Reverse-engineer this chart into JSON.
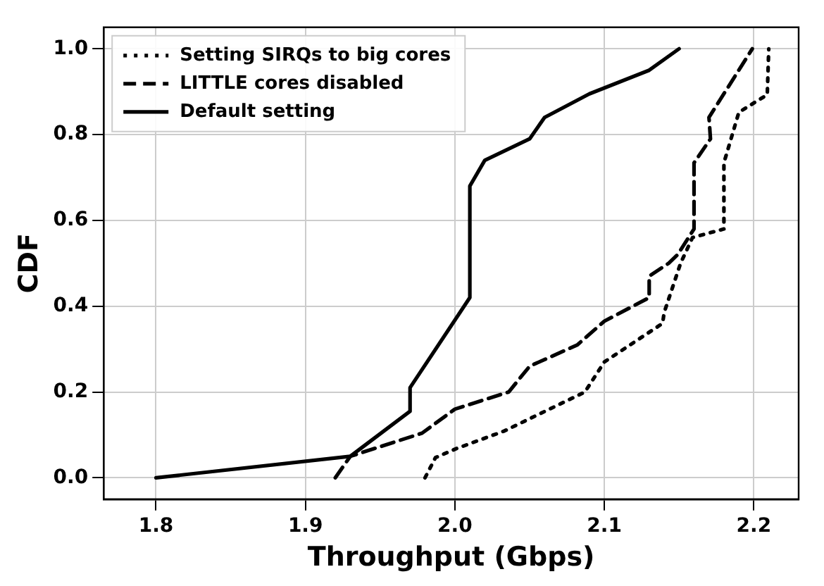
{
  "chart_data": {
    "type": "line",
    "xlabel": "Throughput (Gbps)",
    "ylabel": "CDF",
    "xlim": [
      1.765,
      2.23
    ],
    "ylim": [
      -0.05,
      1.05
    ],
    "xticks": [
      1.8,
      1.9,
      {
        "value": 2,
        "label": "2.0"
      },
      2.1,
      2.2
    ],
    "yticks": [
      {
        "value": 0,
        "label": "0.0"
      },
      0.2,
      0.4,
      0.6,
      0.8,
      {
        "value": 1,
        "label": "1.0"
      }
    ],
    "grid": true,
    "legend": "top left",
    "marker": "none",
    "series": [
      {
        "name": "Setting SIRQs to big cores",
        "color": "#000000",
        "line_style": "dotted",
        "x": [
          1.98,
          1.987,
          2.001,
          2.033,
          2.087,
          2.1,
          2.139,
          2.14,
          2.151,
          2.159,
          2.18,
          2.18,
          2.19,
          2.209,
          2.21
        ],
        "values": [
          0,
          0.047,
          0.068,
          0.109,
          0.2,
          0.27,
          0.36,
          0.385,
          0.5,
          0.56,
          0.58,
          0.734,
          0.852,
          0.893,
          1.0
        ]
      },
      {
        "name": "LITTLE cores disabled",
        "color": "#000000",
        "line_style": "dashed",
        "x": [
          1.92,
          1.93,
          1.978,
          2.0,
          2.036,
          2.05,
          2.082,
          2.1,
          2.13,
          2.13,
          2.143,
          2.149,
          2.16,
          2.16,
          2.171,
          2.17,
          2.199
        ],
        "values": [
          0,
          0.05,
          0.104,
          0.16,
          0.2,
          0.26,
          0.31,
          0.365,
          0.42,
          0.47,
          0.5,
          0.52,
          0.58,
          0.734,
          0.79,
          0.84,
          1.0
        ]
      },
      {
        "name": "Default setting",
        "color": "#000000",
        "line_style": "solid",
        "x": [
          1.8,
          1.93,
          1.97,
          1.97,
          2.01,
          2.01,
          2.02,
          2.05,
          2.06,
          2.09,
          2.13,
          2.15
        ],
        "values": [
          0,
          0.05,
          0.155,
          0.21,
          0.42,
          0.68,
          0.74,
          0.79,
          0.84,
          0.895,
          0.95,
          1.0
        ]
      }
    ]
  }
}
